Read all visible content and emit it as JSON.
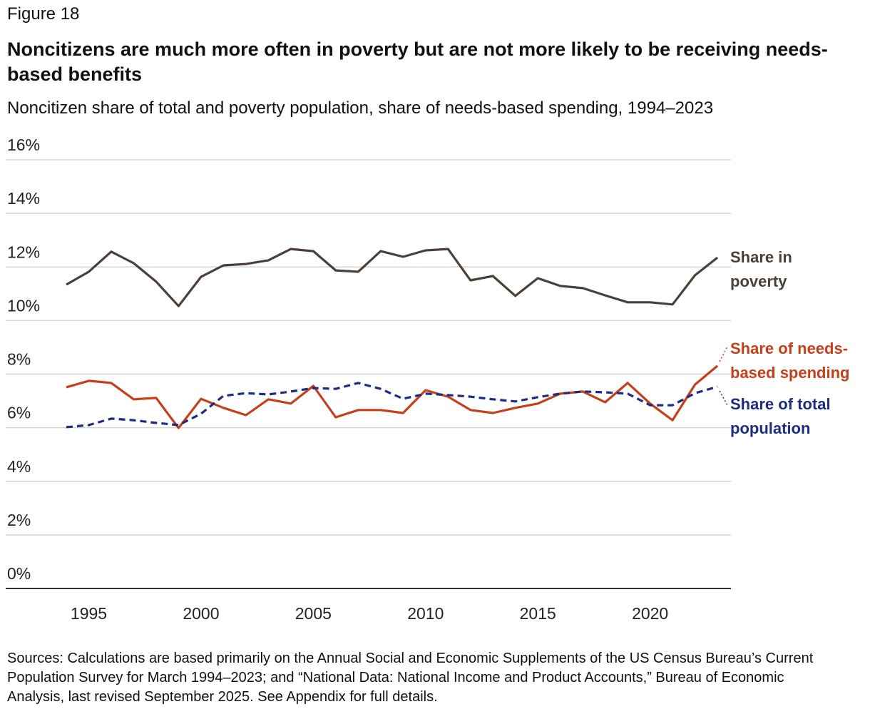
{
  "chart_data": {
    "type": "line",
    "figure_label": "Figure 18",
    "title": "Noncitizens are much more often in poverty but are not more likely to be receiving needs-based benefits",
    "subtitle": "Noncitizen share of total and poverty population, share of needs-based spending, 1994–2023",
    "note": "Sources: Calculations are based primarily on the Annual Social and Economic Supplements of the US Census Bureau’s Current Population Survey for March 1994–2023; and “National Data: National Income and Product Accounts,” Bureau of Economic Analysis, last revised September 2025. See Appendix for full details.",
    "x": [
      1994,
      1995,
      1996,
      1997,
      1998,
      1999,
      2000,
      2001,
      2002,
      2003,
      2004,
      2005,
      2006,
      2007,
      2008,
      2009,
      2010,
      2011,
      2012,
      2013,
      2014,
      2015,
      2016,
      2017,
      2018,
      2019,
      2020,
      2021,
      2022,
      2023
    ],
    "series": [
      {
        "name": "Share in poverty",
        "color": "#4a4039",
        "line_style": "solid",
        "values": [
          11.34,
          11.82,
          12.57,
          12.14,
          11.45,
          10.54,
          11.63,
          12.06,
          12.11,
          12.25,
          12.67,
          12.59,
          11.87,
          11.82,
          12.59,
          12.38,
          12.62,
          12.67,
          11.5,
          11.66,
          10.92,
          11.58,
          11.29,
          11.21,
          10.94,
          10.68,
          10.68,
          10.6,
          11.69,
          12.35
        ]
      },
      {
        "name": "Share of needs-based spending",
        "color": "#c4401c",
        "line_style": "solid",
        "values": [
          7.51,
          7.75,
          7.67,
          7.06,
          7.11,
          5.99,
          7.08,
          6.74,
          6.47,
          7.06,
          6.9,
          7.56,
          6.39,
          6.66,
          6.66,
          6.55,
          7.4,
          7.16,
          6.66,
          6.55,
          6.74,
          6.9,
          7.27,
          7.35,
          6.95,
          7.67,
          6.9,
          6.28,
          7.61,
          8.31
        ]
      },
      {
        "name": "Share of total population",
        "color": "#1f2d7f",
        "line_style": "dashed",
        "values": [
          6.02,
          6.1,
          6.34,
          6.28,
          6.18,
          6.1,
          6.52,
          7.19,
          7.29,
          7.24,
          7.35,
          7.48,
          7.45,
          7.67,
          7.45,
          7.08,
          7.27,
          7.22,
          7.16,
          7.06,
          6.98,
          7.14,
          7.27,
          7.35,
          7.32,
          7.27,
          6.84,
          6.84,
          7.29,
          7.53
        ]
      }
    ],
    "xlim": [
      1991.3,
      2023.6
    ],
    "xticks": [
      1995,
      2000,
      2005,
      2010,
      2015,
      2020
    ],
    "ylim": [
      0,
      16
    ],
    "yticks": [
      {
        "value": 0,
        "label": "0%"
      },
      {
        "value": 2,
        "label": "2%"
      },
      {
        "value": 4,
        "label": "4%"
      },
      {
        "value": 6,
        "label": "6%"
      },
      {
        "value": 8,
        "label": "8%"
      },
      {
        "value": 10,
        "label": "10%"
      },
      {
        "value": 12,
        "label": "12%"
      },
      {
        "value": 14,
        "label": "14%"
      },
      {
        "value": 16,
        "label": "16%"
      }
    ],
    "grid": true
  }
}
